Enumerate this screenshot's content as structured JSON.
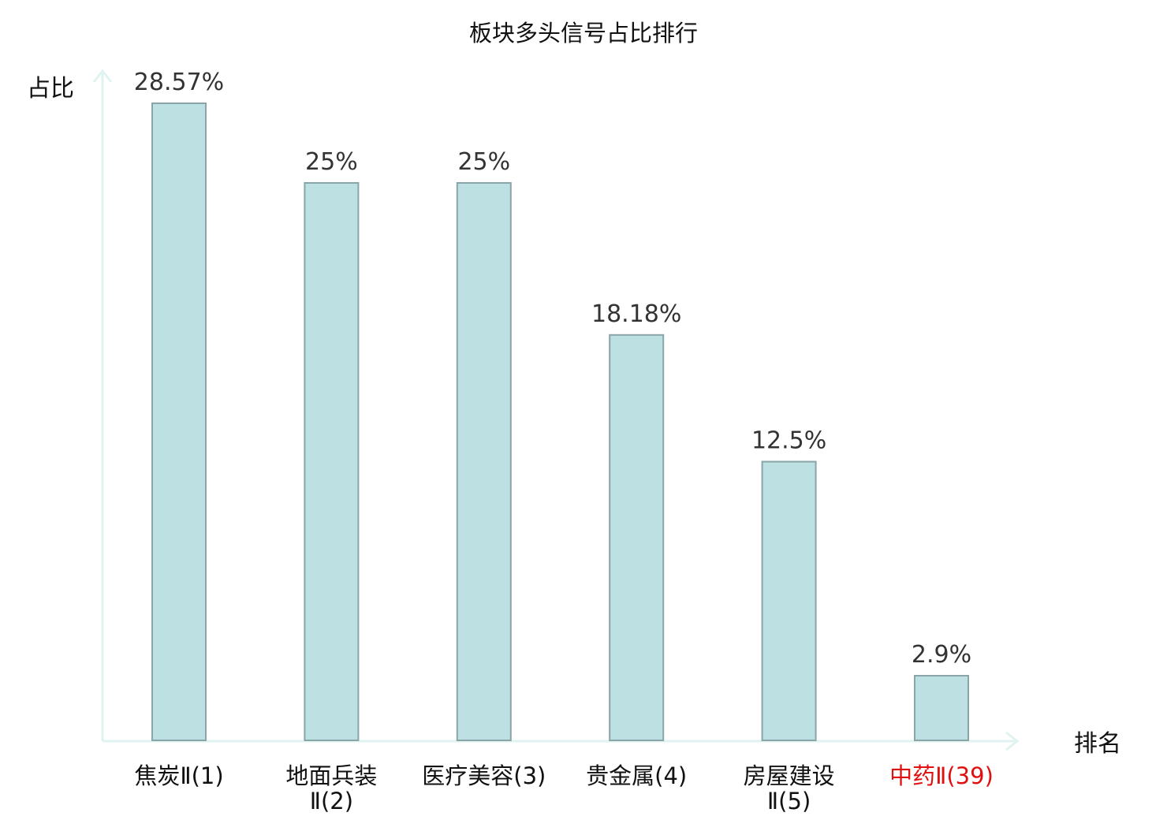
{
  "chart_data": {
    "type": "bar",
    "title": "板块多头信号占比排行",
    "ylabel": "占比",
    "xlabel": "排名",
    "categories": [
      [
        "焦炭Ⅱ(1)"
      ],
      [
        "地面兵装",
        "Ⅱ(2)"
      ],
      [
        "医疗美容(3)"
      ],
      [
        "贵金属(4)"
      ],
      [
        "房屋建设",
        "Ⅱ(5)"
      ],
      [
        "中药Ⅱ(39)"
      ]
    ],
    "values": [
      28.57,
      25,
      25,
      18.18,
      12.5,
      2.9
    ],
    "value_labels": [
      "28.57%",
      "25%",
      "25%",
      "18.18%",
      "12.5%",
      "2.9%"
    ],
    "highlight_index": 5,
    "ylim": [
      0,
      28.57
    ],
    "grid": false,
    "colors": {
      "bar_fill": "#bde0e3",
      "bar_stroke": "#8aa5a8",
      "axis": "#e0f3f0",
      "highlight_text": "#e01010"
    }
  }
}
